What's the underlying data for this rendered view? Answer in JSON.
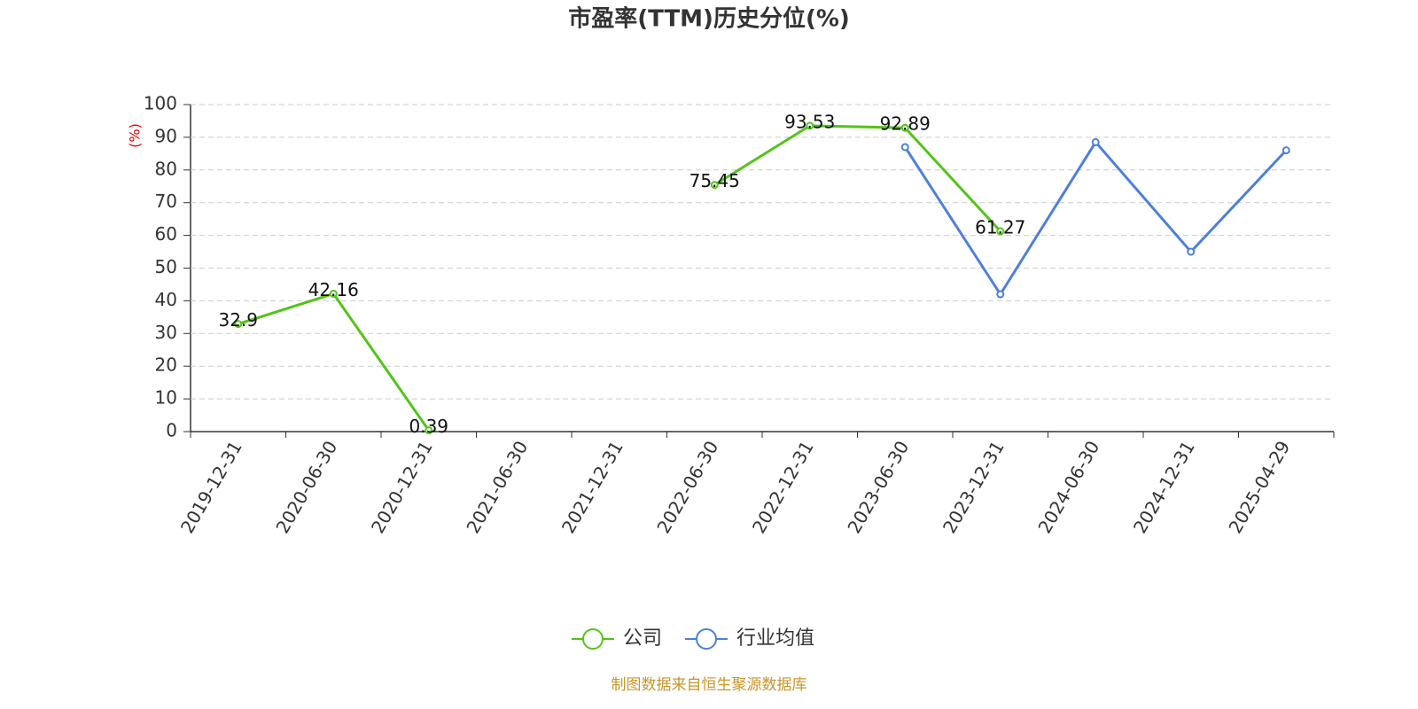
{
  "chart_data": {
    "type": "line",
    "title": "市盈率(TTM)历史分位(%)",
    "y_label": "(%)",
    "source": "制图数据来自恒生聚源数据库",
    "categories": [
      "2019-12-31",
      "2020-06-30",
      "2020-12-31",
      "2021-06-30",
      "2021-12-31",
      "2022-06-30",
      "2022-12-31",
      "2023-06-30",
      "2023-12-31",
      "2024-06-30",
      "2024-12-31",
      "2025-04-29"
    ],
    "series": [
      {
        "name": "公司",
        "color": "#52c41a",
        "data_labels": true,
        "values": [
          32.9,
          42.16,
          0.39,
          null,
          null,
          75.45,
          93.53,
          92.89,
          61.27,
          null,
          null,
          null
        ]
      },
      {
        "name": "行业均值",
        "color": "#4e7fdc",
        "data_labels": false,
        "values": [
          null,
          null,
          null,
          null,
          null,
          null,
          null,
          87,
          42,
          88.5,
          55,
          86
        ]
      }
    ],
    "ylim": [
      0,
      100
    ],
    "yticks": [
      0,
      10,
      20,
      30,
      40,
      50,
      60,
      70,
      80,
      90,
      100
    ],
    "grid": true
  }
}
